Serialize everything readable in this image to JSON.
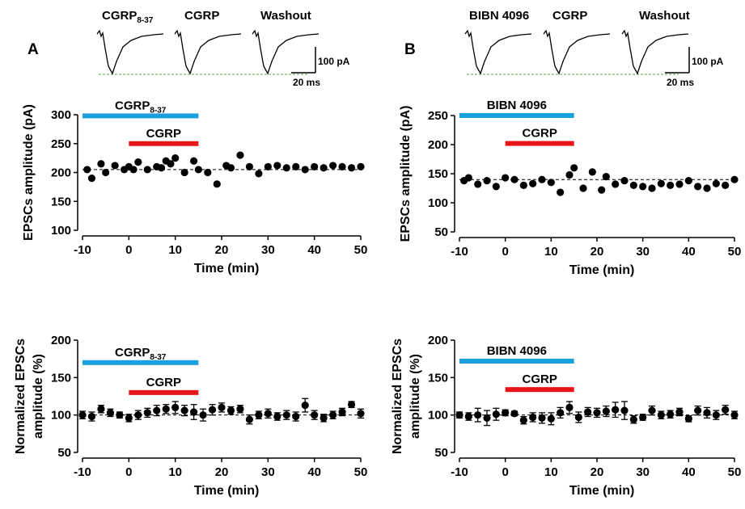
{
  "panels": [
    {
      "letter": "A"
    },
    {
      "letter": "B"
    }
  ],
  "traces": {
    "panelA": [
      "CGRP8-37",
      "CGRP",
      "Washout"
    ],
    "panelB": [
      "BIBN 4096",
      "CGRP",
      "Washout"
    ],
    "scale_amplitude": "100 pA",
    "scale_time": "20 ms",
    "baseline_color": "#5a9e3a"
  },
  "colors": {
    "antagonist_bar": "#1aa0dc",
    "cgrp_bar": "#e8141a"
  },
  "chart_data": [
    {
      "id": "A-top",
      "type": "scatter",
      "xlabel": "Time (min)",
      "ylabel": "EPSCs amplitude (pA)",
      "xlim": [
        -10,
        50
      ],
      "ylim": [
        100,
        300
      ],
      "xticks": [
        -10,
        0,
        10,
        20,
        30,
        40,
        50
      ],
      "yticks": [
        100,
        150,
        200,
        250,
        300
      ],
      "baseline": 205,
      "bars": [
        {
          "label": "CGRP",
          "sub": "8-37",
          "start": -10,
          "end": 15,
          "role": "antagonist",
          "y": 298
        },
        {
          "label": "CGRP",
          "sub": "",
          "start": 0,
          "end": 15,
          "role": "cgrp",
          "y": 250
        }
      ],
      "series": [
        {
          "x": [
            -9,
            -8,
            -6,
            -5,
            -3,
            -1,
            0,
            1,
            2,
            4,
            6,
            7,
            8,
            9,
            10,
            12,
            14,
            15,
            17,
            19,
            21,
            22,
            24,
            26,
            28,
            30,
            32,
            34,
            36,
            38,
            40,
            42,
            44,
            46,
            48,
            50
          ],
          "y": [
            205,
            190,
            215,
            200,
            212,
            205,
            210,
            205,
            218,
            205,
            210,
            208,
            220,
            215,
            225,
            200,
            220,
            205,
            200,
            180,
            212,
            208,
            230,
            210,
            198,
            210,
            212,
            208,
            210,
            205,
            210,
            208,
            212,
            210,
            208,
            210
          ]
        }
      ]
    },
    {
      "id": "B-top",
      "type": "scatter",
      "xlabel": "Time (min)",
      "ylabel": "EPSCs amplitude (pA)",
      "xlim": [
        -10,
        50
      ],
      "ylim": [
        50,
        250
      ],
      "xticks": [
        -10,
        0,
        10,
        20,
        30,
        40,
        50
      ],
      "yticks": [
        50,
        100,
        150,
        200,
        250
      ],
      "baseline": 140,
      "bars": [
        {
          "label": "BIBN 4096",
          "sub": "",
          "start": -10,
          "end": 15,
          "role": "antagonist",
          "y": 250
        },
        {
          "label": "CGRP",
          "sub": "",
          "start": 0,
          "end": 15,
          "role": "cgrp",
          "y": 202
        }
      ],
      "series": [
        {
          "x": [
            -9,
            -8,
            -6,
            -4,
            -2,
            0,
            2,
            4,
            6,
            8,
            10,
            12,
            14,
            15,
            17,
            19,
            21,
            22,
            24,
            26,
            28,
            30,
            32,
            34,
            36,
            38,
            40,
            42,
            44,
            46,
            48,
            50
          ],
          "y": [
            138,
            143,
            132,
            138,
            128,
            143,
            140,
            130,
            133,
            140,
            135,
            118,
            148,
            160,
            125,
            153,
            122,
            145,
            132,
            138,
            130,
            128,
            125,
            133,
            130,
            132,
            138,
            128,
            125,
            133,
            130,
            140
          ]
        }
      ]
    },
    {
      "id": "A-bottom",
      "type": "scatter",
      "xlabel": "Time (min)",
      "ylabel": "Normalized EPSCs amplitude (%)",
      "ylabel_lines": [
        "Normalized EPSCs",
        "amplitude (%)"
      ],
      "xlim": [
        -10,
        50
      ],
      "ylim": [
        50,
        200
      ],
      "xticks": [
        -10,
        0,
        10,
        20,
        30,
        40,
        50
      ],
      "yticks": [
        50,
        100,
        150,
        200
      ],
      "baseline": 100,
      "bars": [
        {
          "label": "CGRP",
          "sub": "8-37",
          "start": -10,
          "end": 15,
          "role": "antagonist",
          "y": 170
        },
        {
          "label": "CGRP",
          "sub": "",
          "start": 0,
          "end": 15,
          "role": "cgrp",
          "y": 130
        }
      ],
      "series": [
        {
          "x": [
            -10,
            -8,
            -6,
            -4,
            -2,
            0,
            2,
            4,
            6,
            8,
            10,
            12,
            14,
            16,
            18,
            20,
            22,
            24,
            26,
            28,
            30,
            32,
            34,
            36,
            38,
            40,
            42,
            44,
            46,
            48,
            50
          ],
          "y": [
            100,
            98,
            108,
            103,
            100,
            96,
            100,
            103,
            106,
            108,
            110,
            106,
            104,
            100,
            107,
            110,
            106,
            108,
            94,
            100,
            102,
            98,
            100,
            98,
            113,
            100,
            96,
            100,
            104,
            114,
            102
          ],
          "err": [
            5,
            6,
            5,
            5,
            4,
            5,
            6,
            6,
            7,
            6,
            8,
            7,
            10,
            8,
            7,
            6,
            5,
            5,
            6,
            5,
            6,
            5,
            6,
            6,
            9,
            6,
            5,
            5,
            5,
            4,
            6
          ]
        }
      ]
    },
    {
      "id": "B-bottom",
      "type": "scatter",
      "xlabel": "Time (min)",
      "ylabel": "Normalized EPSCs amplitude (%)",
      "ylabel_lines": [
        "Normalized EPSCs",
        "amplitude (%)"
      ],
      "xlim": [
        -10,
        50
      ],
      "ylim": [
        50,
        200
      ],
      "xticks": [
        -10,
        0,
        10,
        20,
        30,
        40,
        50
      ],
      "yticks": [
        50,
        100,
        150,
        200
      ],
      "baseline": 100,
      "bars": [
        {
          "label": "BIBN 4096",
          "sub": "",
          "start": -10,
          "end": 15,
          "role": "antagonist",
          "y": 172
        },
        {
          "label": "CGRP",
          "sub": "",
          "start": 0,
          "end": 15,
          "role": "cgrp",
          "y": 134
        }
      ],
      "series": [
        {
          "x": [
            -10,
            -8,
            -6,
            -4,
            -2,
            0,
            2,
            4,
            6,
            8,
            10,
            12,
            14,
            16,
            18,
            20,
            22,
            24,
            26,
            28,
            30,
            32,
            34,
            36,
            38,
            40,
            42,
            44,
            46,
            48,
            50
          ],
          "y": [
            100,
            98,
            100,
            96,
            101,
            103,
            102,
            93,
            97,
            96,
            95,
            103,
            110,
            97,
            104,
            103,
            105,
            107,
            106,
            94,
            97,
            106,
            100,
            101,
            104,
            95,
            106,
            103,
            100,
            107,
            100
          ],
          "err": [
            4,
            5,
            9,
            10,
            8,
            4,
            3,
            5,
            6,
            7,
            8,
            7,
            8,
            7,
            6,
            6,
            7,
            10,
            12,
            5,
            4,
            6,
            5,
            5,
            5,
            4,
            6,
            7,
            6,
            6,
            5
          ]
        }
      ]
    }
  ]
}
